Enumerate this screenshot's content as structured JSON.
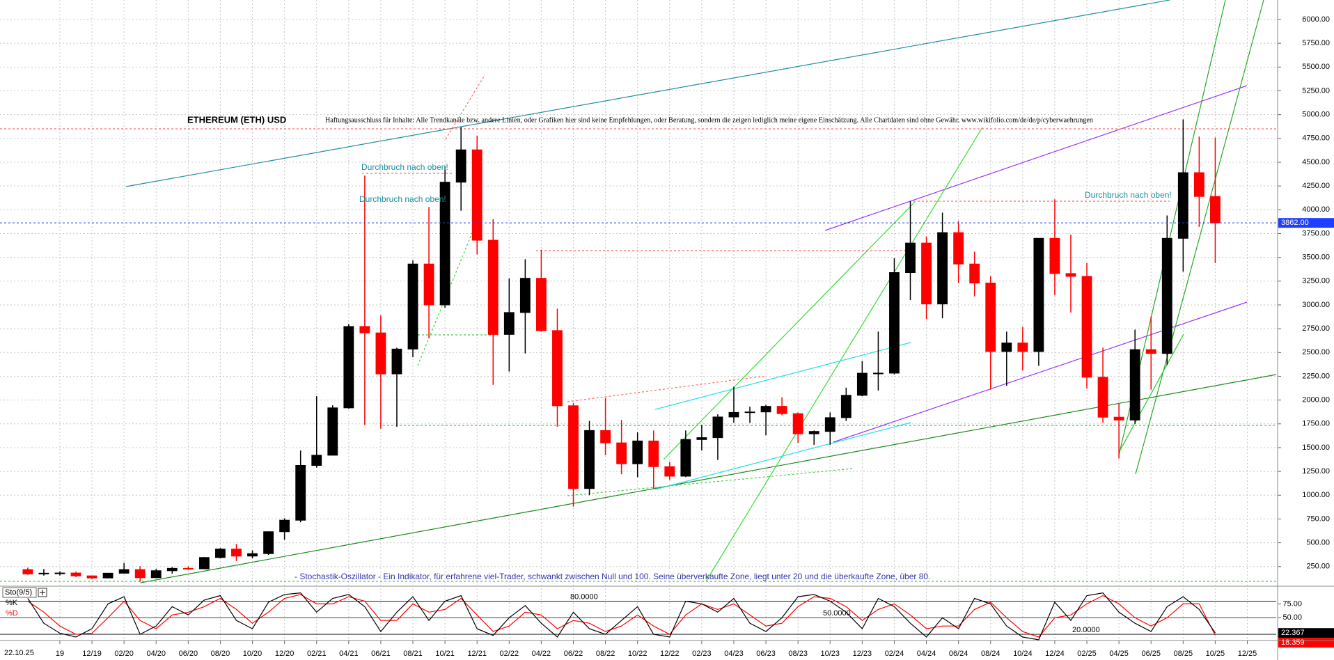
{
  "chart_data": {
    "type": "candlestick",
    "title": "ETHEREUM (ETH) USD",
    "disclaimer": "Haftungsausschluss für Inhalte: Alle Trendkanäle bzw. andere Linien, oder Grafiken hier sind keine Empfehlungen, oder Beratung, sondern die zeigen lediglich meine eigene Einschätzung. Alle Chartdaten sind ohne Gewähr. www.wikifolio.com/de/de/p/cyberwaehrungen",
    "date": "22.10.25",
    "annotations": [
      "Durchbruch nach oben!",
      "Durchbruch nach oben!",
      "Durchbruch nach oben!"
    ],
    "indicator_note": "- Stochastik-Oszillator - Ein Indikator, für erfahrene viel-Trader, schwankt zwischen Null und 100. Seine überverkaufte Zone, liegt unter 20 und die überkaufte Zone, über 80.",
    "x": [
      8,
      9,
      10,
      11,
      12,
      13,
      14,
      15,
      16,
      17,
      18,
      19,
      20,
      21,
      22,
      23,
      24,
      25,
      26,
      27,
      28,
      29,
      30,
      31,
      32,
      33,
      34,
      35,
      36,
      37,
      38,
      39,
      40,
      41,
      42,
      43,
      44,
      45,
      46,
      47,
      48,
      49,
      50,
      51,
      52,
      53,
      54,
      55,
      56,
      57,
      58,
      59,
      60,
      61,
      62,
      63,
      64,
      65,
      66,
      67,
      68,
      69,
      70,
      71,
      72,
      73,
      74,
      75,
      76,
      77,
      78,
      79,
      80,
      81,
      82
    ],
    "open": [
      218,
      172,
      180,
      182,
      152,
      130,
      180,
      218,
      133,
      206,
      231,
      226,
      345,
      434,
      360,
      386,
      616,
      737,
      1313,
      1420,
      1918,
      2773,
      2706,
      2275,
      2536,
      3430,
      3000,
      4290,
      4630,
      3680,
      2690,
      2920,
      3280,
      2730,
      1940,
      1070,
      1680,
      1550,
      1330,
      1570,
      1300,
      1200,
      1585,
      1605,
      1822,
      1870,
      1875,
      1934,
      1857,
      1645,
      1670,
      1815,
      2050,
      2282,
      2283,
      3340,
      3650,
      3010,
      3760,
      3430,
      3230,
      2510,
      2600,
      2510,
      3700,
      3330,
      3300,
      2240,
      1820,
      1790,
      2530,
      2490,
      3700,
      4390,
      4140
    ],
    "high": [
      239,
      224,
      199,
      197,
      155,
      183,
      288,
      253,
      227,
      245,
      253,
      350,
      445,
      488,
      420,
      620,
      757,
      1470,
      2040,
      1945,
      2797,
      4360,
      2890,
      2550,
      3470,
      4030,
      4460,
      4870,
      4780,
      3900,
      3280,
      3480,
      3580,
      2960,
      1970,
      1780,
      2020,
      1790,
      1660,
      1680,
      1350,
      1680,
      1740,
      1850,
      2140,
      1930,
      1950,
      2030,
      1870,
      1680,
      1870,
      2130,
      2410,
      2720,
      3490,
      4090,
      3720,
      3970,
      3880,
      3560,
      3300,
      2720,
      2770,
      3700,
      4110,
      3740,
      3440,
      2550,
      1960,
      2740,
      2880,
      3940,
      4950,
      4770,
      4760
    ],
    "low": [
      163,
      155,
      156,
      139,
      117,
      127,
      175,
      90,
      130,
      176,
      214,
      224,
      335,
      308,
      336,
      373,
      532,
      715,
      1290,
      1420,
      1910,
      1737,
      1700,
      1720,
      2450,
      2650,
      2970,
      3990,
      3530,
      2160,
      2300,
      2490,
      2720,
      1720,
      880,
      1000,
      1420,
      1220,
      1190,
      1070,
      1160,
      1190,
      1470,
      1370,
      1760,
      1760,
      1630,
      1840,
      1550,
      1530,
      1530,
      1780,
      2040,
      2100,
      2270,
      3050,
      2850,
      2860,
      3230,
      3090,
      2110,
      2150,
      2310,
      2360,
      3100,
      2920,
      2120,
      1760,
      1385,
      1750,
      2110,
      2370,
      3350,
      3820,
      3440
    ],
    "close": [
      172,
      180,
      182,
      152,
      130,
      180,
      218,
      133,
      206,
      231,
      226,
      345,
      434,
      360,
      386,
      616,
      737,
      1313,
      1420,
      1918,
      2773,
      2706,
      2275,
      2536,
      3430,
      3000,
      4290,
      4630,
      3680,
      2690,
      2920,
      3280,
      2730,
      1940,
      1070,
      1680,
      1550,
      1330,
      1570,
      1300,
      1200,
      1585,
      1605,
      1822,
      1870,
      1875,
      1934,
      1857,
      1645,
      1670,
      1815,
      2050,
      2282,
      2283,
      3340,
      3650,
      3010,
      3760,
      3430,
      3230,
      2510,
      2600,
      2510,
      3700,
      3330,
      3300,
      2240,
      1820,
      1790,
      2530,
      2490,
      3700,
      4390,
      4140,
      3862
    ],
    "last_price_label": "3862.00",
    "last_price_color": "#1f3fff",
    "up_color": "#000000",
    "down_color": "#ff0000",
    "grid": true,
    "xlim": [
      6.27,
      85.8
    ],
    "ylim": [
      58,
      6205
    ],
    "xticks": [
      {
        "value": 10,
        "label": "19"
      },
      {
        "value": 12,
        "label": "12/19"
      },
      {
        "value": 14,
        "label": "02/20"
      },
      {
        "value": 16,
        "label": "04/20"
      },
      {
        "value": 18,
        "label": "06/20"
      },
      {
        "value": 20,
        "label": "08/20"
      },
      {
        "value": 22,
        "label": "10/20"
      },
      {
        "value": 24,
        "label": "12/20"
      },
      {
        "value": 26,
        "label": "02/21"
      },
      {
        "value": 28,
        "label": "04/21"
      },
      {
        "value": 30,
        "label": "06/21"
      },
      {
        "value": 32,
        "label": "08/21"
      },
      {
        "value": 34,
        "label": "10/21"
      },
      {
        "value": 36,
        "label": "12/21"
      },
      {
        "value": 38,
        "label": "02/22"
      },
      {
        "value": 40,
        "label": "04/22"
      },
      {
        "value": 42,
        "label": "06/22"
      },
      {
        "value": 44,
        "label": "08/22"
      },
      {
        "value": 46,
        "label": "10/22"
      },
      {
        "value": 48,
        "label": "12/22"
      },
      {
        "value": 50,
        "label": "02/23"
      },
      {
        "value": 52,
        "label": "04/23"
      },
      {
        "value": 54,
        "label": "06/23"
      },
      {
        "value": 56,
        "label": "08/23"
      },
      {
        "value": 58,
        "label": "10/23"
      },
      {
        "value": 60,
        "label": "12/23"
      },
      {
        "value": 62,
        "label": "02/24"
      },
      {
        "value": 64,
        "label": "04/24"
      },
      {
        "value": 66,
        "label": "06/24"
      },
      {
        "value": 68,
        "label": "08/24"
      },
      {
        "value": 70,
        "label": "10/24"
      },
      {
        "value": 72,
        "label": "12/24"
      },
      {
        "value": 74,
        "label": "02/25"
      },
      {
        "value": 76,
        "label": "04/25"
      },
      {
        "value": 78,
        "label": "06/25"
      },
      {
        "value": 80,
        "label": "08/25"
      },
      {
        "value": 82,
        "label": "10/25"
      },
      {
        "value": 84,
        "label": "12/25"
      }
    ],
    "yticks": [
      {
        "value": 250,
        "label": "250.00"
      },
      {
        "value": 500,
        "label": "500.00"
      },
      {
        "value": 750,
        "label": "750.00"
      },
      {
        "value": 1000,
        "label": "1000.00"
      },
      {
        "value": 1250,
        "label": "1250.00"
      },
      {
        "value": 1500,
        "label": "1500.00"
      },
      {
        "value": 1750,
        "label": "1750.00"
      },
      {
        "value": 2000,
        "label": "2000.00"
      },
      {
        "value": 2250,
        "label": "2250.00"
      },
      {
        "value": 2500,
        "label": "2500.00"
      },
      {
        "value": 2750,
        "label": "2750.00"
      },
      {
        "value": 3000,
        "label": "3000.00"
      },
      {
        "value": 3250,
        "label": "3250.00"
      },
      {
        "value": 3500,
        "label": "3500.00"
      },
      {
        "value": 3750,
        "label": "3750.00"
      },
      {
        "value": 4000,
        "label": "4000.00"
      },
      {
        "value": 4250,
        "label": "4250.00"
      },
      {
        "value": 4500,
        "label": "4500.00"
      },
      {
        "value": 4750,
        "label": "4750.00"
      },
      {
        "value": 5000,
        "label": "5000.00"
      },
      {
        "value": 5250,
        "label": "5250.00"
      },
      {
        "value": 5500,
        "label": "5500.00"
      },
      {
        "value": 5750,
        "label": "5750.00"
      },
      {
        "value": 6000,
        "label": "6000.00"
      }
    ]
  },
  "stochastic": {
    "name": "Sto(9/5)",
    "k_name": "%K",
    "d_name": "%D",
    "k_color": "#000000",
    "d_color": "#ff0000",
    "k": [
      85,
      40,
      22,
      15,
      30,
      75,
      88,
      20,
      35,
      70,
      55,
      82,
      90,
      45,
      30,
      78,
      92,
      95,
      60,
      85,
      92,
      70,
      25,
      60,
      88,
      45,
      80,
      90,
      30,
      18,
      50,
      72,
      40,
      15,
      60,
      30,
      20,
      45,
      70,
      20,
      15,
      80,
      75,
      60,
      85,
      40,
      25,
      50,
      88,
      92,
      80,
      60,
      30,
      85,
      70,
      40,
      15,
      50,
      30,
      85,
      75,
      35,
      15,
      10,
      78,
      45,
      90,
      95,
      60,
      40,
      25,
      70,
      88,
      65,
      22.367
    ],
    "d": [
      80,
      60,
      35,
      20,
      22,
      50,
      80,
      45,
      30,
      55,
      60,
      70,
      85,
      65,
      40,
      60,
      85,
      92,
      75,
      75,
      88,
      80,
      45,
      45,
      75,
      60,
      65,
      85,
      55,
      25,
      35,
      60,
      55,
      30,
      45,
      40,
      25,
      35,
      55,
      35,
      20,
      55,
      75,
      65,
      75,
      55,
      35,
      40,
      70,
      88,
      85,
      70,
      45,
      65,
      75,
      55,
      30,
      35,
      35,
      65,
      78,
      50,
      25,
      15,
      50,
      55,
      75,
      90,
      75,
      50,
      35,
      50,
      75,
      75,
      18.359
    ],
    "ylim": [
      10,
      102
    ],
    "yticks": [
      {
        "value": 50,
        "label": "50.00"
      },
      {
        "value": 75,
        "label": "75.00"
      }
    ],
    "levels": [
      {
        "value": 80,
        "label": "80.0000"
      },
      {
        "value": 50,
        "label": "50.0000"
      },
      {
        "value": 20,
        "label": "20.0000"
      }
    ]
  }
}
